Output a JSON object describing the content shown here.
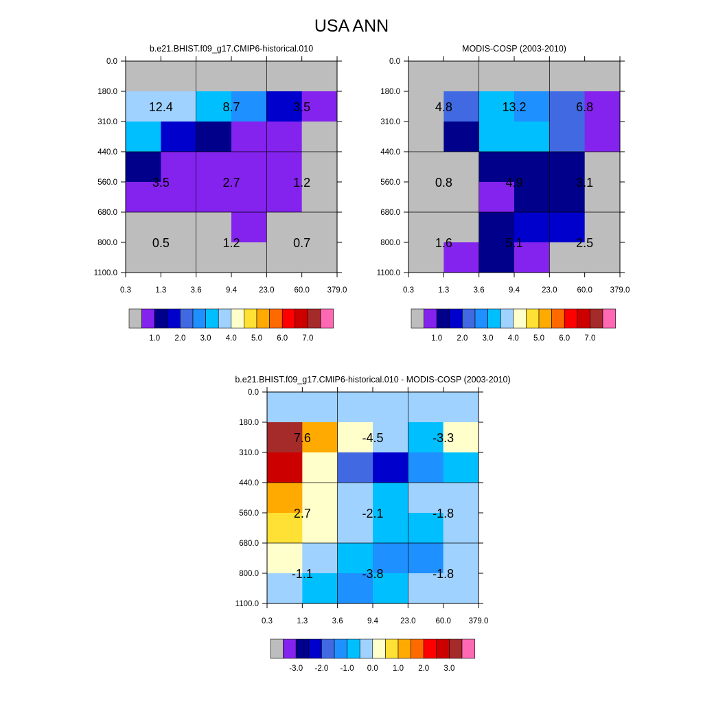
{
  "page": {
    "title": "USA ANN"
  },
  "palettes": {
    "abs": [
      "#bdbdbd",
      "#8422ee",
      "#00008b",
      "#0000cd",
      "#4169e1",
      "#1e90ff",
      "#00bfff",
      "#a0d2ff",
      "#ffffcc",
      "#ffe135",
      "#ffaa00",
      "#ff6a00",
      "#ff0000",
      "#cd0000",
      "#a52a2a",
      "#ff69b4"
    ],
    "diff": [
      "#bdbdbd",
      "#8422ee",
      "#00008b",
      "#0000cd",
      "#4169e1",
      "#1e90ff",
      "#00bfff",
      "#a0d2ff",
      "#ffffcc",
      "#ffe135",
      "#ffaa00",
      "#ff6a00",
      "#ff0000",
      "#cd0000",
      "#a52a2a",
      "#ff69b4"
    ]
  },
  "chart_data": [
    {
      "type": "heatmap",
      "title": "b.e21.BHIST.f09_g17.CMIP6-historical.010",
      "x_ticks": [
        "0.3",
        "1.3",
        "3.6",
        "9.4",
        "23.0",
        "60.0",
        "379.0"
      ],
      "y_ticks": [
        "0.0",
        "180.0",
        "310.0",
        "440.0",
        "560.0",
        "680.0",
        "800.0",
        "1100.0"
      ],
      "cell_colors": [
        [
          0,
          0,
          0,
          0,
          0,
          0
        ],
        [
          7,
          7,
          6,
          5,
          3,
          1
        ],
        [
          6,
          3,
          2,
          1,
          1,
          0
        ],
        [
          2,
          1,
          1,
          1,
          1,
          0
        ],
        [
          1,
          1,
          1,
          1,
          1,
          0
        ],
        [
          0,
          0,
          0,
          1,
          0,
          0
        ],
        [
          0,
          0,
          0,
          0,
          0,
          0
        ]
      ],
      "block_values": [
        [
          "12.4",
          "8.7",
          "3.5"
        ],
        [
          "3.5",
          "2.7",
          "1.2"
        ],
        [
          "0.5",
          "1.2",
          "0.7"
        ]
      ],
      "colorbar_labels": [
        "1.0",
        "2.0",
        "3.0",
        "4.0",
        "5.0",
        "6.0",
        "7.0"
      ]
    },
    {
      "type": "heatmap",
      "title": "MODIS-COSP (2003-2010)",
      "x_ticks": [
        "0.3",
        "1.3",
        "3.6",
        "9.4",
        "23.0",
        "60.0",
        "379.0"
      ],
      "y_ticks": [
        "0.0",
        "180.0",
        "310.0",
        "440.0",
        "560.0",
        "680.0",
        "800.0",
        "1100.0"
      ],
      "cell_colors": [
        [
          0,
          0,
          0,
          0,
          0,
          0
        ],
        [
          0,
          4,
          6,
          5,
          4,
          1
        ],
        [
          0,
          2,
          6,
          6,
          4,
          1
        ],
        [
          0,
          0,
          2,
          2,
          2,
          0
        ],
        [
          0,
          0,
          1,
          2,
          2,
          0
        ],
        [
          0,
          0,
          2,
          3,
          3,
          0
        ],
        [
          0,
          1,
          2,
          1,
          0,
          0
        ]
      ],
      "block_values": [
        [
          "4.8",
          "13.2",
          "6.8"
        ],
        [
          "0.8",
          "4.9",
          "3.1"
        ],
        [
          "1.6",
          "5.1",
          "2.5"
        ]
      ],
      "colorbar_labels": [
        "1.0",
        "2.0",
        "3.0",
        "4.0",
        "5.0",
        "6.0",
        "7.0"
      ]
    },
    {
      "type": "heatmap",
      "title": "b.e21.BHIST.f09_g17.CMIP6-historical.010 - MODIS-COSP (2003-2010)",
      "x_ticks": [
        "0.3",
        "1.3",
        "3.6",
        "9.4",
        "23.0",
        "60.0",
        "379.0"
      ],
      "y_ticks": [
        "0.0",
        "180.0",
        "310.0",
        "440.0",
        "560.0",
        "680.0",
        "800.0",
        "1100.0"
      ],
      "cell_colors": [
        [
          7,
          7,
          7,
          7,
          7,
          7
        ],
        [
          14,
          10,
          8,
          7,
          6,
          8
        ],
        [
          13,
          8,
          4,
          3,
          5,
          6
        ],
        [
          10,
          8,
          7,
          6,
          7,
          7
        ],
        [
          9,
          8,
          7,
          6,
          6,
          7
        ],
        [
          8,
          7,
          6,
          5,
          5,
          7
        ],
        [
          7,
          6,
          5,
          6,
          7,
          7
        ]
      ],
      "block_values": [
        [
          "7.6",
          "-4.5",
          "-3.3"
        ],
        [
          "2.7",
          "-2.1",
          "-1.8"
        ],
        [
          "-1.1",
          "-3.8",
          "-1.8"
        ]
      ],
      "colorbar_labels": [
        "-3.0",
        "-2.0",
        "-1.0",
        "0.0",
        "1.0",
        "2.0",
        "3.0"
      ]
    }
  ]
}
